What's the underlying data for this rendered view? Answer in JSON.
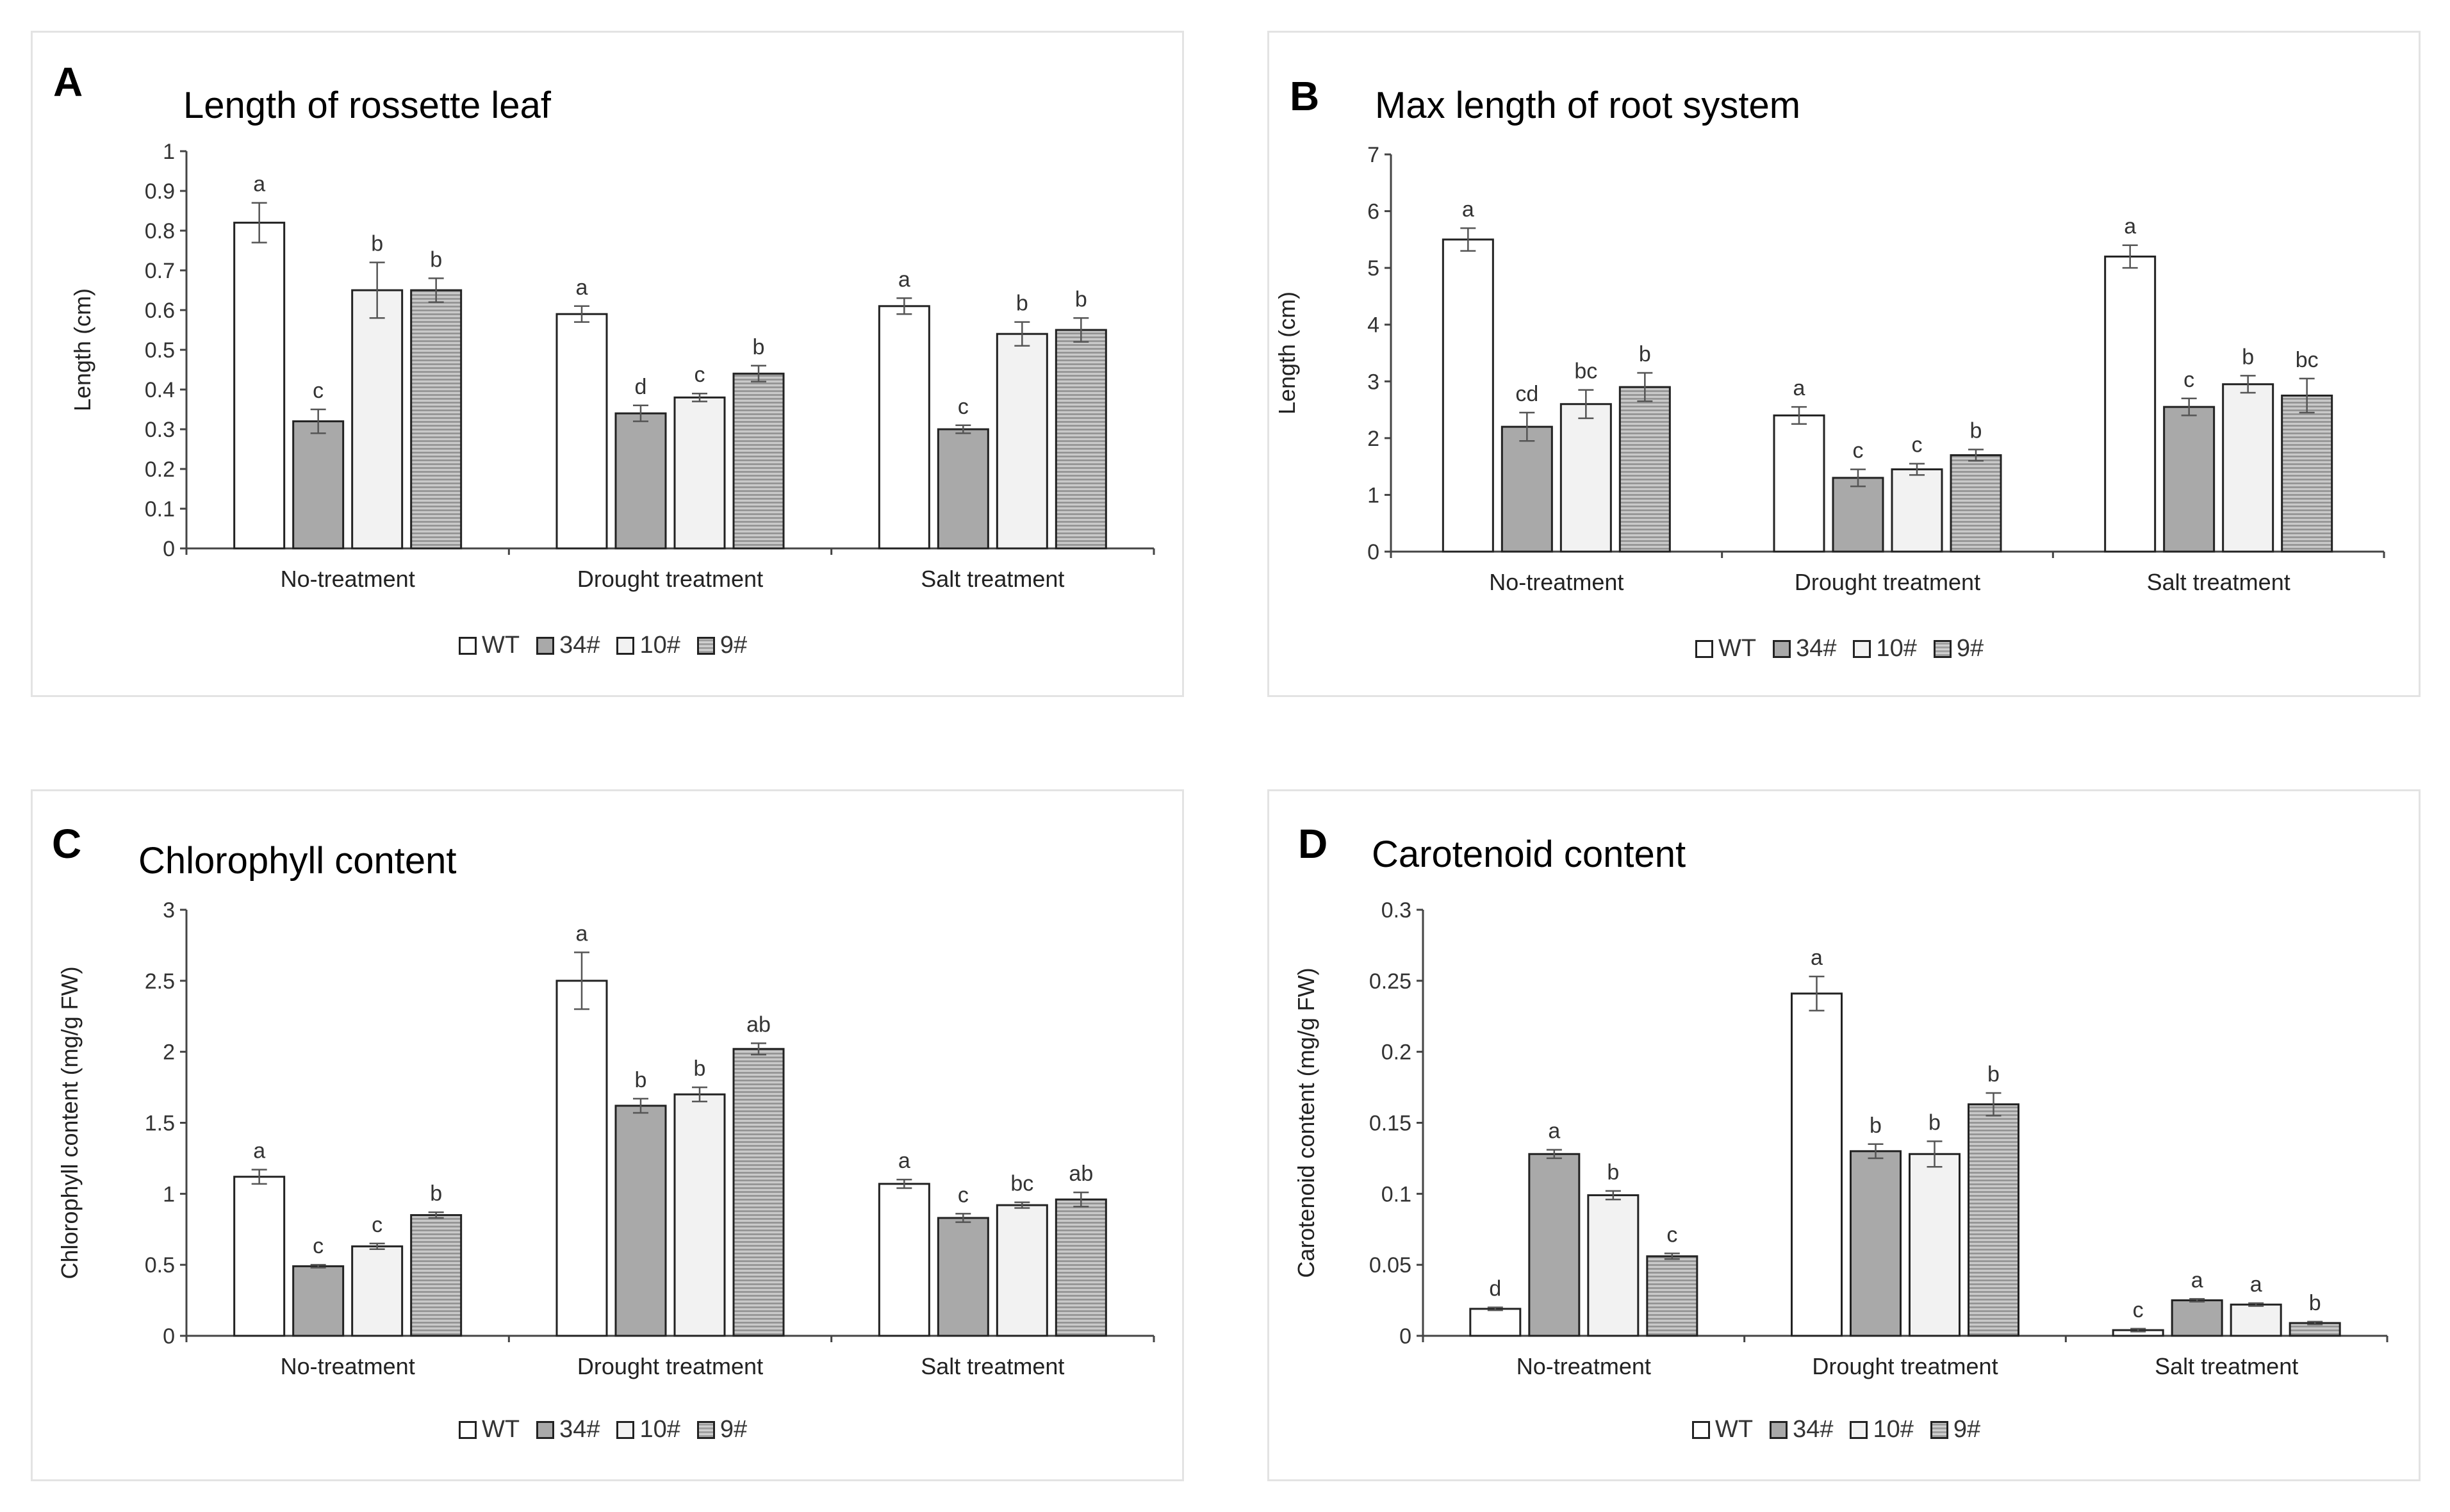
{
  "legend": {
    "series_names": [
      "WT",
      "34#",
      "10#",
      "9#"
    ],
    "fills": [
      "#ffffff",
      "#a9a9a9",
      "#f2f2f2",
      "hatch"
    ]
  },
  "panels": [
    {
      "letter": "A",
      "title": "Length of rossette leaf"
    },
    {
      "letter": "B",
      "title": "Max length of root system"
    },
    {
      "letter": "C",
      "title": "Chlorophyll content"
    },
    {
      "letter": "D",
      "title": "Carotenoid content"
    }
  ],
  "chart_data": [
    {
      "type": "bar",
      "title": "Length of rossette leaf",
      "xlabel": "",
      "ylabel": "Length (cm)",
      "ylim": [
        0,
        1
      ],
      "yticks": [
        "0",
        "0.1",
        "0.2",
        "0.3",
        "0.4",
        "0.5",
        "0.6",
        "0.7",
        "0.8",
        "0.9",
        "1"
      ],
      "categories": [
        "No-treatment",
        "Drought treatment",
        "Salt treatment"
      ],
      "series": [
        {
          "name": "WT",
          "values": [
            0.82,
            0.59,
            0.61
          ],
          "errors": [
            0.05,
            0.02,
            0.02
          ],
          "letters": [
            "a",
            "a",
            "a"
          ]
        },
        {
          "name": "34#",
          "values": [
            0.32,
            0.34,
            0.3
          ],
          "errors": [
            0.03,
            0.02,
            0.01
          ],
          "letters": [
            "c",
            "d",
            "c"
          ]
        },
        {
          "name": "10#",
          "values": [
            0.65,
            0.38,
            0.54
          ],
          "errors": [
            0.07,
            0.01,
            0.03
          ],
          "letters": [
            "b",
            "c",
            "b"
          ]
        },
        {
          "name": "9#",
          "values": [
            0.65,
            0.44,
            0.55
          ],
          "errors": [
            0.03,
            0.02,
            0.03
          ],
          "letters": [
            "b",
            "b",
            "b"
          ]
        }
      ]
    },
    {
      "type": "bar",
      "title": "Max length of root system",
      "xlabel": "",
      "ylabel": "Length (cm)",
      "ylim": [
        0,
        7
      ],
      "yticks": [
        "0",
        "1",
        "2",
        "3",
        "4",
        "5",
        "6",
        "7"
      ],
      "categories": [
        "No-treatment",
        "Drought treatment",
        "Salt treatment"
      ],
      "series": [
        {
          "name": "WT",
          "values": [
            5.5,
            2.4,
            5.2
          ],
          "errors": [
            0.2,
            0.15,
            0.2
          ],
          "letters": [
            "a",
            "a",
            "a"
          ]
        },
        {
          "name": "34#",
          "values": [
            2.2,
            1.3,
            2.55
          ],
          "errors": [
            0.25,
            0.15,
            0.15
          ],
          "letters": [
            "cd",
            "c",
            "c"
          ]
        },
        {
          "name": "10#",
          "values": [
            2.6,
            1.45,
            2.95
          ],
          "errors": [
            0.25,
            0.1,
            0.15
          ],
          "letters": [
            "bc",
            "c",
            "b"
          ]
        },
        {
          "name": "9#",
          "values": [
            2.9,
            1.7,
            2.75
          ],
          "errors": [
            0.25,
            0.1,
            0.3
          ],
          "letters": [
            "b",
            "b",
            "bc"
          ]
        }
      ]
    },
    {
      "type": "bar",
      "title": "Chlorophyll content",
      "xlabel": "",
      "ylabel": "Chlorophyll content (mg/g FW)",
      "ylim": [
        0,
        3
      ],
      "yticks": [
        "0",
        "0.5",
        "1",
        "1.5",
        "2",
        "2.5",
        "3"
      ],
      "categories": [
        "No-treatment",
        "Drought treatment",
        "Salt treatment"
      ],
      "series": [
        {
          "name": "WT",
          "values": [
            1.12,
            2.5,
            1.07
          ],
          "errors": [
            0.05,
            0.2,
            0.03
          ],
          "letters": [
            "a",
            "a",
            "a"
          ]
        },
        {
          "name": "34#",
          "values": [
            0.49,
            1.62,
            0.83
          ],
          "errors": [
            0.01,
            0.05,
            0.03
          ],
          "letters": [
            "c",
            "b",
            "c"
          ]
        },
        {
          "name": "10#",
          "values": [
            0.63,
            1.7,
            0.92
          ],
          "errors": [
            0.02,
            0.05,
            0.02
          ],
          "letters": [
            "c",
            "b",
            "bc"
          ]
        },
        {
          "name": "9#",
          "values": [
            0.85,
            2.02,
            0.96
          ],
          "errors": [
            0.02,
            0.04,
            0.05
          ],
          "letters": [
            "b",
            "ab",
            "ab"
          ]
        }
      ]
    },
    {
      "type": "bar",
      "title": "Carotenoid content",
      "xlabel": "",
      "ylabel": "Carotenoid content (mg/g FW)",
      "ylim": [
        0,
        0.3
      ],
      "yticks": [
        "0",
        "0.05",
        "0.1",
        "0.15",
        "0.2",
        "0.25",
        "0.3"
      ],
      "categories": [
        "No-treatment",
        "Drought treatment",
        "Salt treatment"
      ],
      "series": [
        {
          "name": "WT",
          "values": [
            0.019,
            0.241,
            0.004
          ],
          "errors": [
            0.001,
            0.012,
            0.001
          ],
          "letters": [
            "d",
            "a",
            "c"
          ]
        },
        {
          "name": "34#",
          "values": [
            0.128,
            0.13,
            0.025
          ],
          "errors": [
            0.003,
            0.005,
            0.001
          ],
          "letters": [
            "a",
            "b",
            "a"
          ]
        },
        {
          "name": "10#",
          "values": [
            0.099,
            0.128,
            0.022
          ],
          "errors": [
            0.003,
            0.009,
            0.001
          ],
          "letters": [
            "b",
            "b",
            "a"
          ]
        },
        {
          "name": "9#",
          "values": [
            0.056,
            0.163,
            0.009
          ],
          "errors": [
            0.002,
            0.008,
            0.001
          ],
          "letters": [
            "c",
            "b",
            "b"
          ]
        }
      ]
    }
  ]
}
